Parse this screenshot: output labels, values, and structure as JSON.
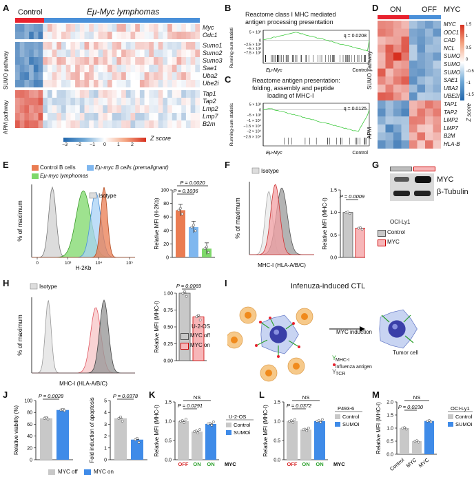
{
  "panels": {
    "A": "A",
    "B": "B",
    "C": "C",
    "D": "D",
    "E": "E",
    "F": "F",
    "G": "G",
    "H": "H",
    "I": "I",
    "J": "J",
    "K": "K",
    "L": "L",
    "M": "M"
  },
  "A": {
    "group_control": "Control",
    "group_tumor": "Eμ-Myc lymphomas",
    "genes_top": [
      "Myc",
      "Odc1"
    ],
    "genes_sumo": [
      "Sumo1",
      "Sumo2",
      "Sumo3",
      "Sae1",
      "Uba2",
      "Ube2i"
    ],
    "genes_apm": [
      "Tap1",
      "Tap2",
      "Lmp2",
      "Lmp7",
      "B2m"
    ],
    "side_sumo": "SUMO pathway",
    "side_apm": "APM pathway",
    "colorbar_ticks": [
      "−3",
      "−2",
      "−1",
      "0",
      "1",
      "2"
    ],
    "colorbar_label": "Z score",
    "colors": {
      "high": "#d7301f",
      "mid": "#ffffff",
      "low": "#2166ac",
      "control_bar": "#e8222e",
      "tumor_bar": "#4a90d9"
    }
  },
  "B": {
    "title_l1": "Reactome class I MHC mediated",
    "title_l2": "antigen processing presentation",
    "q": "q = 0.0208",
    "ylabel": "Running-sum statistic",
    "yticks": [
      "5 × 10³",
      "0",
      "−2.5 × 10³",
      "−5 × 10³",
      "−7.5 × 10³"
    ],
    "xl": "Eμ-Myc",
    "xr": "Control"
  },
  "C": {
    "title_l1": "Reactome antigen presentation:",
    "title_l2": "folding, assembly and peptide",
    "title_l3": "loading of MHC-I",
    "q": "q = 0.0125",
    "ylabel": "Running-sum statistic",
    "yticks": [
      "5 × 10³",
      "0",
      "−5 × 10³",
      "−1 × 10⁴",
      "−1.5 × 10⁴",
      "−2 × 10⁴",
      "−2.5 × 10⁴"
    ],
    "xl": "Eμ-Myc",
    "xr": "Control"
  },
  "D": {
    "on": "ON",
    "off": "OFF",
    "myc": "MYC",
    "genes": [
      "MYC",
      "ODC1",
      "CAD",
      "NCL",
      "SUMO1",
      "SUMO2",
      "SUMO3",
      "SAE1",
      "UBA2",
      "UBE2I",
      "TAP1",
      "TAP2",
      "LMP2",
      "LMP7",
      "B2M",
      "HLA-B"
    ],
    "side_sumo": "SUMO pathway",
    "side_apm": "APM",
    "colorbar_ticks": [
      "1.5",
      "1",
      "0.5",
      "0",
      "−0.5",
      "−1",
      "−1.5"
    ],
    "colorbar_label": "Z score"
  },
  "E": {
    "legend": [
      "Control B cells",
      "Eμ-myc B cells (premalignant)",
      "Eμ-myc lymphomas"
    ],
    "isotype": "Isotype",
    "ylabel": "% of maximum",
    "xlabel": "H-2Kb",
    "xticks": [
      "0",
      "10³",
      "10⁴",
      "10⁵"
    ],
    "bar_ylabel": "Relative MFI (H-2Kb)",
    "p1": "P = 0.0020",
    "p2": "P = 0.1036"
  },
  "F": {
    "isotype": "Isotype",
    "ylabel": "% of maximum",
    "xlabel": "MHC-I (HLA-A/B/C)",
    "bar_ylabel": "Relative MFI (MHC-I)",
    "p": "P = 0.0009",
    "legend_title": "OCI-Ly1",
    "legend": [
      "Control",
      "MYC"
    ]
  },
  "G": {
    "myc": "MYC",
    "tub": "β-Tubulin"
  },
  "H": {
    "isotype": "Isotype",
    "ylabel": "% of maximum",
    "xlabel": "MHC-I (HLA-A/B/C)",
    "bar_ylabel": "Relative MFI (MHC-I)",
    "p": "P = 0.0069",
    "legend_title": "U-2-OS",
    "legend": [
      "MYC off",
      "MYC on"
    ]
  },
  "I": {
    "title": "Infenuza-induced CTL",
    "arrow": "MYC induction",
    "tumor": "Tumor cell",
    "legend": [
      "MHC-I",
      "influenza antigen",
      "TCR"
    ]
  },
  "J": {
    "ylabel1": "Relative viability (%)",
    "p1": "P = 0.0028",
    "ylabel2": "Fold induction of apoptosis",
    "p2": "P = 0.0378",
    "legend": [
      "MYC off",
      "MYC on"
    ]
  },
  "K": {
    "ylabel": "Relative MFI (MHC-I)",
    "ns": "NS",
    "p": "P = 0.0291",
    "legend_title": "U-2-OS",
    "legend": [
      "Control",
      "SUMOi"
    ],
    "xlabels": [
      "OFF",
      "ON",
      "ON"
    ],
    "x_suffix": "MYC"
  },
  "L": {
    "ylabel": "Relative MFI (MHC-I)",
    "ns": "NS",
    "p": "P = 0.0372",
    "legend_title": "P493-6",
    "legend": [
      "Control",
      "SUMOi"
    ],
    "xlabels": [
      "OFF",
      "ON",
      "ON"
    ],
    "x_suffix": "MYC"
  },
  "M": {
    "ylabel": "Relative MFI (MHC-I)",
    "ns": "NS",
    "p": "P = 0.0230",
    "legend_title": "OCI-Ly1",
    "legend": [
      "Control",
      "SUMOi"
    ],
    "xlabels": [
      "Control",
      "MYC",
      "MYC"
    ]
  },
  "chart_data": [
    {
      "type": "bar",
      "panel": "E",
      "categories": [
        "Control B cells",
        "Eμ-myc B cells (premalignant)",
        "Eμ-myc lymphomas"
      ],
      "values": [
        70,
        45,
        13
      ],
      "ylim": [
        0,
        100
      ],
      "yticks": [
        0,
        20,
        40,
        60,
        80,
        100
      ]
    },
    {
      "type": "bar",
      "panel": "F",
      "categories": [
        "Control",
        "MYC"
      ],
      "values": [
        1.0,
        0.65
      ],
      "ylim": [
        0,
        1.5
      ],
      "yticks": [
        0,
        0.5,
        1.0,
        1.5
      ]
    },
    {
      "type": "bar",
      "panel": "H",
      "categories": [
        "MYC off",
        "MYC on"
      ],
      "values": [
        1.0,
        0.65
      ],
      "ylim": [
        0,
        1.0
      ],
      "yticks": [
        0,
        0.25,
        0.5,
        0.75,
        1.0
      ]
    },
    {
      "type": "bar",
      "panel": "J1",
      "categories": [
        "MYC off",
        "MYC on"
      ],
      "values": [
        70,
        84
      ],
      "ylim": [
        0,
        100
      ],
      "yticks": [
        0,
        20,
        40,
        60,
        80,
        100
      ]
    },
    {
      "type": "bar",
      "panel": "J2",
      "categories": [
        "MYC off",
        "MYC on"
      ],
      "values": [
        3.5,
        1.7
      ],
      "ylim": [
        0,
        5
      ],
      "yticks": [
        0,
        1,
        2,
        3,
        4,
        5
      ]
    },
    {
      "type": "bar",
      "panel": "K",
      "categories": [
        "OFF",
        "ON",
        "ON"
      ],
      "values": [
        1.0,
        0.73,
        0.93
      ],
      "ylim": [
        0,
        1.5
      ],
      "yticks": [
        0,
        0.5,
        1.0,
        1.5
      ]
    },
    {
      "type": "bar",
      "panel": "L",
      "categories": [
        "OFF",
        "ON",
        "ON"
      ],
      "values": [
        1.0,
        0.78,
        1.0
      ],
      "ylim": [
        0,
        1.5
      ],
      "yticks": [
        0,
        0.5,
        1.0,
        1.5
      ]
    },
    {
      "type": "bar",
      "panel": "M",
      "categories": [
        "Control",
        "MYC",
        "MYC"
      ],
      "values": [
        1.0,
        0.5,
        1.27
      ],
      "ylim": [
        0,
        2.0
      ],
      "yticks": [
        0,
        0.5,
        1.0,
        1.5,
        2.0
      ]
    }
  ]
}
